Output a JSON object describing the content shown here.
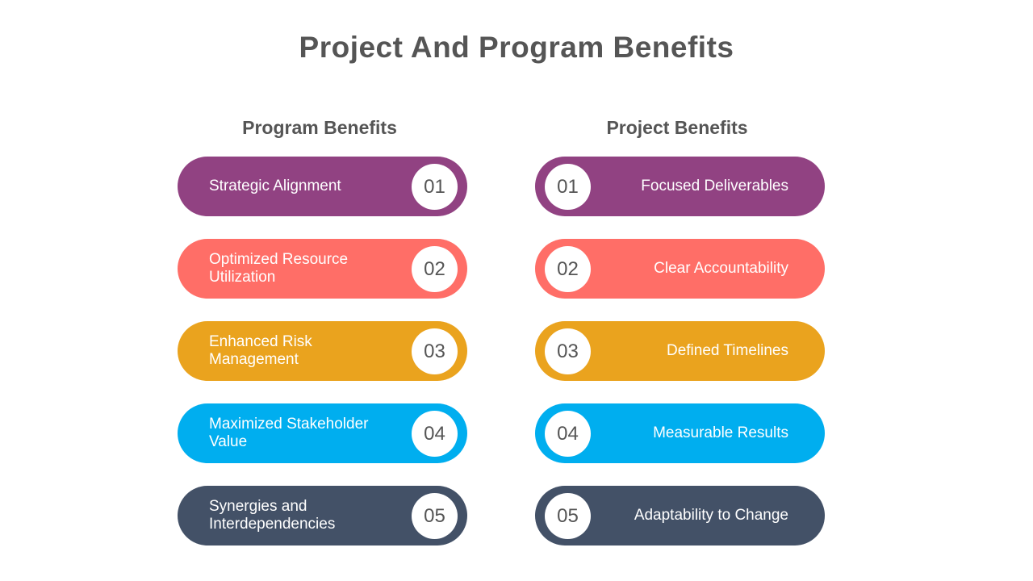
{
  "title": "Project And Program Benefits",
  "program": {
    "heading": "Program Benefits",
    "items": [
      {
        "num": "01",
        "label": "Strategic Alignment",
        "color": "#914282"
      },
      {
        "num": "02",
        "label": "Optimized Resource Utilization",
        "color": "#ff6e67"
      },
      {
        "num": "03",
        "label": "Enhanced Risk Management",
        "color": "#eaa31e"
      },
      {
        "num": "04",
        "label": "Maximized Stakeholder Value",
        "color": "#00aeef"
      },
      {
        "num": "05",
        "label": "Synergies and Interdependencies",
        "color": "#435167"
      }
    ]
  },
  "project": {
    "heading": "Project Benefits",
    "items": [
      {
        "num": "01",
        "label": "Focused Deliverables",
        "color": "#914282"
      },
      {
        "num": "02",
        "label": "Clear Accountability",
        "color": "#ff6e67"
      },
      {
        "num": "03",
        "label": "Defined Timelines",
        "color": "#eaa31e"
      },
      {
        "num": "04",
        "label": "Measurable Results",
        "color": "#00aeef"
      },
      {
        "num": "05",
        "label": "Adaptability to Change",
        "color": "#435167"
      }
    ]
  }
}
